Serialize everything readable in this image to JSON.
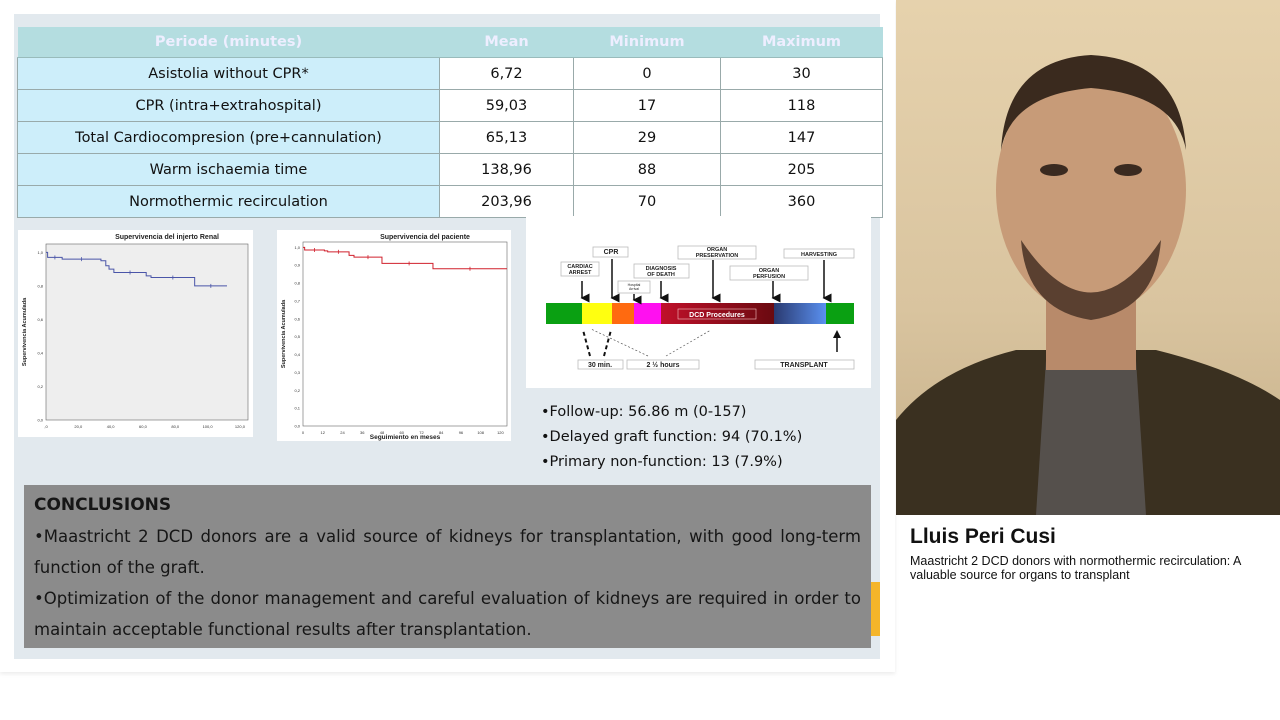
{
  "table": {
    "headers": [
      "Periode (minutes)",
      "Mean",
      "Minimum",
      "Maximum"
    ],
    "rows": [
      [
        "Asistolia without CPR*",
        "6,72",
        "0",
        "30"
      ],
      [
        "CPR (intra+extrahospital)",
        "59,03",
        "17",
        "118"
      ],
      [
        "Total Cardiocompresion (pre+cannulation)",
        "65,13",
        "29",
        "147"
      ],
      [
        "Warm ischaemia time",
        "138,96",
        "88",
        "205"
      ],
      [
        "Normothermic recirculation",
        "203,96",
        "70",
        "360"
      ]
    ]
  },
  "chart_data": [
    {
      "type": "line",
      "title": "Supervivencia del injerto Renal",
      "ylabel": "Supervivencia Acumulada",
      "xlabel": "",
      "color": "#4a55a8",
      "xlim": [
        0,
        125
      ],
      "ylim": [
        0,
        1.05
      ],
      "xticks": [
        ",0",
        "20,0",
        "40,0",
        "60,0",
        "80,0",
        "100,0",
        "120,0"
      ],
      "xtick_values": [
        0,
        20,
        40,
        60,
        80,
        100,
        120
      ],
      "yticks": [
        "0,0",
        "0,2",
        "0,4",
        "0,6",
        "0,8",
        "1,0"
      ],
      "ytick_values": [
        0,
        0.2,
        0.4,
        0.6,
        0.8,
        1.0
      ],
      "x": [
        0,
        1,
        1,
        10,
        10,
        34,
        34,
        37,
        37,
        39,
        39,
        42,
        42,
        62,
        62,
        65,
        65,
        92,
        92,
        112
      ],
      "y": [
        1.0,
        1.0,
        0.97,
        0.97,
        0.96,
        0.96,
        0.95,
        0.95,
        0.92,
        0.92,
        0.9,
        0.9,
        0.88,
        0.88,
        0.86,
        0.86,
        0.85,
        0.85,
        0.8,
        0.8
      ]
    },
    {
      "type": "line",
      "title": "Supervivencia del paciente",
      "ylabel": "Supervivencia Acumulada",
      "xlabel": "Seguimiento en meses",
      "color": "#d0202c",
      "xlim": [
        0,
        124
      ],
      "ylim": [
        0,
        1.03
      ],
      "xticks": [
        "0",
        "12",
        "24",
        "36",
        "48",
        "60",
        "72",
        "84",
        "96",
        "108",
        "120"
      ],
      "xtick_values": [
        0,
        12,
        24,
        36,
        48,
        60,
        72,
        84,
        96,
        108,
        120
      ],
      "yticks": [
        "0,0",
        "0,1",
        "0,2",
        "0,3",
        "0,4",
        "0,5",
        "0,6",
        "0,7",
        "0,8",
        "0,9",
        "1,0"
      ],
      "ytick_values": [
        0,
        0.1,
        0.2,
        0.3,
        0.4,
        0.5,
        0.6,
        0.7,
        0.8,
        0.9,
        1.0
      ],
      "x": [
        0,
        1,
        1,
        13,
        13,
        15,
        15,
        28,
        28,
        31,
        31,
        48,
        48,
        50,
        50,
        79,
        79,
        124
      ],
      "y": [
        1.0,
        1.0,
        0.985,
        0.985,
        0.98,
        0.98,
        0.975,
        0.975,
        0.955,
        0.955,
        0.945,
        0.945,
        0.91,
        0.91,
        0.91,
        0.91,
        0.88,
        0.88
      ]
    }
  ],
  "diagram": {
    "labels": {
      "cardiac_arrest": "CARDIAC ARREST",
      "cpr": "CPR",
      "hospital_arrival": "Hospital Arrival",
      "diagnosis": "DIAGNOSIS OF DEATH",
      "organ_preservation": "ORGAN PRESERVATION",
      "organ_perfusion": "ORGAN PERFUSION",
      "harvesting": "HARVESTING",
      "dcd": "DCD Procedures",
      "t30": "30 min.",
      "t25": "2 ½ hours",
      "transplant": "TRANSPLANT"
    }
  },
  "stats": [
    "•Follow-up:  56.86 m (0-157)",
    "•Delayed graft function: 94 (70.1%)",
    "•Primary non-function: 13 (7.9%)"
  ],
  "conclusions": {
    "title": "CONCLUSIONS",
    "items": [
      "•Maastricht 2 DCD donors are a valid source of kidneys for transplantation, with good long-term function of the graft.",
      "•Optimization of the donor management and careful evaluation of kidneys are required in order to maintain acceptable functional results after transplantation."
    ]
  },
  "speaker": {
    "name": "Lluis Peri Cusi",
    "talk": "Maastricht 2 DCD donors with normothermic recirculation: A valuable source for organs to transplant"
  }
}
